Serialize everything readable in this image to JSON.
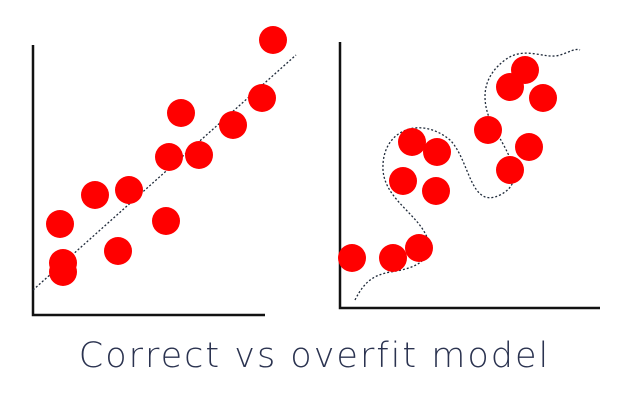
{
  "caption": "Correct vs overfit model",
  "colors": {
    "point": "#ff0000",
    "axis": "#111111",
    "fit_line": "#1f2a3a",
    "caption": "#2b3350"
  },
  "panels": [
    {
      "label": "correct",
      "fit": "straight dotted line"
    },
    {
      "label": "overfit",
      "fit": "wavy dotted curve"
    }
  ]
}
